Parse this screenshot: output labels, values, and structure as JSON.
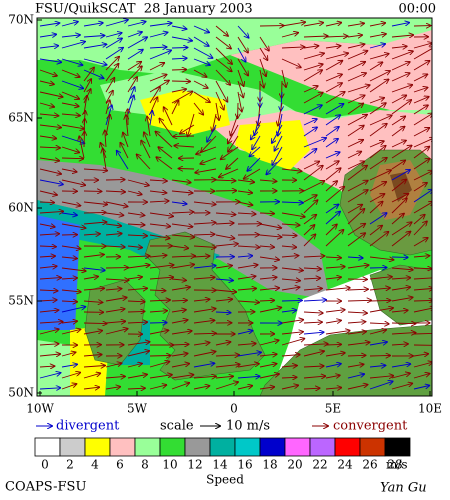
{
  "header": {
    "title": "FSU/QuikSCAT  28 January 2003",
    "time": "00:00"
  },
  "map": {
    "lat_labels": [
      "70N",
      "65N",
      "60N",
      "55N",
      "50N"
    ],
    "lon_labels": [
      "10W",
      "5W",
      "0",
      "5E",
      "10E"
    ]
  },
  "legend": {
    "divergent": "divergent",
    "scale": "scale",
    "scale_value": "10 m/s",
    "convergent": "convergent"
  },
  "colorbar": {
    "ticks": [
      0,
      2,
      4,
      6,
      8,
      10,
      12,
      14,
      16,
      18,
      20,
      22,
      24,
      26,
      28
    ],
    "colors": [
      "#ffffff",
      "#cccccc",
      "#ffff00",
      "#ffc0c0",
      "#99ff99",
      "#33dd33",
      "#999999",
      "#00b0a0",
      "#00c8c8",
      "#0000cc",
      "#ff66ff",
      "#bb66ff",
      "#ff0000",
      "#cc3300",
      "#000000"
    ],
    "unit": "m/s",
    "label": "Speed"
  },
  "footer": {
    "left": "COAPS-FSU",
    "right": "Yan Gu"
  }
}
